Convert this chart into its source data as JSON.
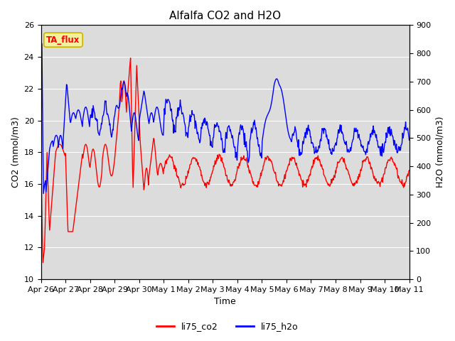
{
  "title": "Alfalfa CO2 and H2O",
  "xlabel": "Time",
  "ylabel_left": "CO2 (mmol/m3)",
  "ylabel_right": "H2O (mmol/m3)",
  "ylim_left": [
    10,
    26
  ],
  "ylim_right": [
    0,
    900
  ],
  "yticks_left": [
    10,
    12,
    14,
    16,
    18,
    20,
    22,
    24,
    26
  ],
  "yticks_right": [
    0,
    100,
    200,
    300,
    400,
    500,
    600,
    700,
    800,
    900
  ],
  "xtick_labels": [
    "Apr 26",
    "Apr 27",
    "Apr 28",
    "Apr 29",
    "Apr 30",
    "May 1",
    "May 2",
    "May 3",
    "May 4",
    "May 5",
    "May 6",
    "May 7",
    "May 8",
    "May 9",
    "May 10",
    "May 11"
  ],
  "legend_labels": [
    "li75_co2",
    "li75_h2o"
  ],
  "annotation_text": "TA_flux",
  "annotation_bg": "#f5f0a0",
  "annotation_border": "#c8b400",
  "background_color": "#e8e8e8",
  "plot_bg": "#dcdcdc",
  "line_color_co2": "red",
  "line_color_h2o": "blue",
  "line_width": 1.0,
  "title_fontsize": 11,
  "axis_label_fontsize": 9,
  "tick_fontsize": 8
}
